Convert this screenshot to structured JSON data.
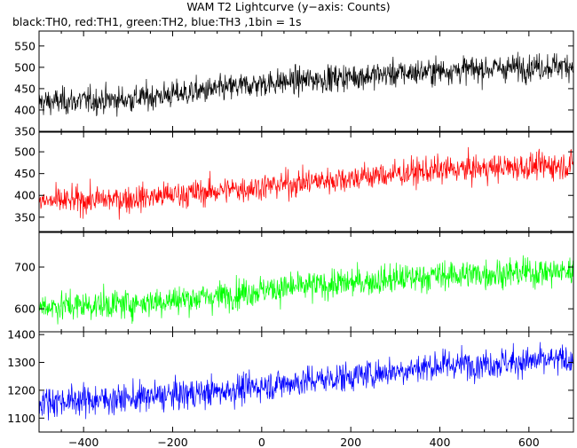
{
  "title": "WAM T2 Lightcurve (y−axis: Counts)",
  "subtitle": "black:TH0, red:TH1, green:TH2, blue:TH3 ,1bin = 1s",
  "chart_data": {
    "type": "line",
    "x": {
      "range": [
        -500,
        700
      ],
      "ticks": [
        -400,
        -200,
        0,
        200,
        400,
        600
      ],
      "bin_seconds": 1
    },
    "grid": false,
    "panels": [
      {
        "name": "TH0",
        "color": "#000000",
        "ylim": [
          350,
          585
        ],
        "yticks": [
          350,
          400,
          450,
          500,
          550
        ],
        "trend": [
          [
            -500,
            418
          ],
          [
            -300,
            425
          ],
          [
            -100,
            448
          ],
          [
            0,
            462
          ],
          [
            200,
            478
          ],
          [
            400,
            492
          ],
          [
            700,
            505
          ]
        ],
        "noise_sd": 22
      },
      {
        "name": "TH1",
        "color": "#ff0000",
        "ylim": [
          315,
          545
        ],
        "yticks": [
          350,
          400,
          450,
          500
        ],
        "trend": [
          [
            -500,
            385
          ],
          [
            -300,
            392
          ],
          [
            -100,
            410
          ],
          [
            0,
            420
          ],
          [
            200,
            440
          ],
          [
            400,
            458
          ],
          [
            700,
            470
          ]
        ],
        "noise_sd": 22
      },
      {
        "name": "TH2",
        "color": "#00ff00",
        "ylim": [
          545,
          785
        ],
        "yticks": [
          600,
          700
        ],
        "trend": [
          [
            -500,
            605
          ],
          [
            -300,
            612
          ],
          [
            -100,
            630
          ],
          [
            0,
            645
          ],
          [
            200,
            662
          ],
          [
            400,
            680
          ],
          [
            700,
            690
          ]
        ],
        "noise_sd": 25
      },
      {
        "name": "TH3",
        "color": "#0000ff",
        "ylim": [
          1050,
          1410
        ],
        "yticks": [
          1100,
          1200,
          1300,
          1400
        ],
        "trend": [
          [
            -500,
            1160
          ],
          [
            -300,
            1170
          ],
          [
            -100,
            1195
          ],
          [
            0,
            1215
          ],
          [
            200,
            1250
          ],
          [
            400,
            1290
          ],
          [
            700,
            1310
          ]
        ],
        "noise_sd": 38
      }
    ]
  }
}
